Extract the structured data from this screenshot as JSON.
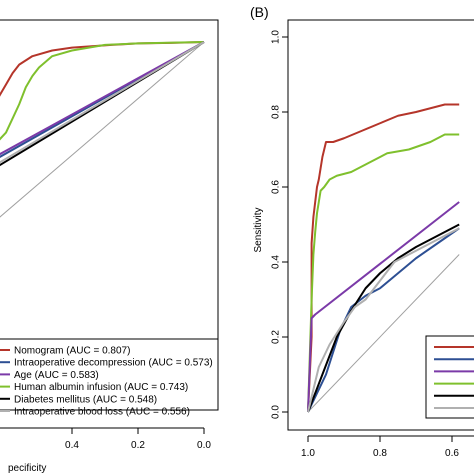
{
  "chart_data": [
    {
      "type": "line",
      "panel_label": "",
      "xlabel": "pecificity",
      "ylabel": "",
      "x_reversed": true,
      "xlim": [
        1.0,
        0.0
      ],
      "xticks": [
        "0.4",
        "0.2",
        "0.0"
      ],
      "xtick_values": [
        0.4,
        0.2,
        0.0
      ],
      "legend_position": "bottom",
      "series": [
        {
          "name": "Nomogram (AUC = 0.807)",
          "color": "#b5352a",
          "points": [
            [
              0.64,
              0.77
            ],
            [
              0.62,
              0.81
            ],
            [
              0.6,
              0.85
            ],
            [
              0.58,
              0.89
            ],
            [
              0.56,
              0.92
            ],
            [
              0.52,
              0.95
            ],
            [
              0.46,
              0.97
            ],
            [
              0.4,
              0.98
            ],
            [
              0.34,
              0.985
            ],
            [
              0.28,
              0.99
            ],
            [
              0.2,
              0.995
            ],
            [
              0.1,
              0.997
            ],
            [
              0.0,
              1.0
            ]
          ]
        },
        {
          "name": "Intraoperative decompression (AUC = 0.573)",
          "color": "#2d4f93",
          "points": [
            [
              0.64,
              0.58
            ],
            [
              0.0,
              1.0
            ]
          ]
        },
        {
          "name": "Age (AUC = 0.583)",
          "color": "#7b3aa8",
          "points": [
            [
              0.64,
              0.59
            ],
            [
              0.0,
              1.0
            ]
          ]
        },
        {
          "name": "Human albumin infusion (AUC = 0.743)",
          "color": "#7fc02d",
          "points": [
            [
              0.64,
              0.63
            ],
            [
              0.6,
              0.68
            ],
            [
              0.58,
              0.73
            ],
            [
              0.56,
              0.78
            ],
            [
              0.54,
              0.84
            ],
            [
              0.52,
              0.88
            ],
            [
              0.5,
              0.91
            ],
            [
              0.46,
              0.95
            ],
            [
              0.4,
              0.97
            ],
            [
              0.3,
              0.99
            ],
            [
              0.2,
              0.995
            ],
            [
              0.0,
              1.0
            ]
          ]
        },
        {
          "name": "Diabetes mellitus (AUC = 0.548)",
          "color": "#000000",
          "points": [
            [
              0.64,
              0.55
            ],
            [
              0.0,
              1.0
            ]
          ]
        },
        {
          "name": "Intraoperative blood loss (AUC = 0.556)",
          "color": "#b0b0b0",
          "points": [
            [
              0.64,
              0.56
            ],
            [
              0.0,
              1.0
            ]
          ]
        }
      ],
      "reference_line": {
        "color": "#a0a0a0",
        "points": [
          [
            0.64,
            0.36
          ],
          [
            0.0,
            1.0
          ]
        ]
      }
    },
    {
      "type": "line",
      "panel_label": "(B)",
      "xlabel": "",
      "ylabel": "Sensitivity",
      "x_reversed": true,
      "xlim": [
        1.05,
        0.55
      ],
      "ylim": [
        -0.05,
        1.05
      ],
      "xticks": [
        "1.0",
        "0.8",
        "0.6"
      ],
      "xtick_values": [
        1.0,
        0.8,
        0.6
      ],
      "yticks": [
        "0.0",
        "0.2",
        "0.4",
        "0.6",
        "0.8",
        "1.0"
      ],
      "ytick_values": [
        0.0,
        0.2,
        0.4,
        0.6,
        0.8,
        1.0
      ],
      "series": [
        {
          "name": "",
          "color": "#b5352a",
          "points": [
            [
              1.0,
              0.0
            ],
            [
              0.99,
              0.2
            ],
            [
              0.99,
              0.45
            ],
            [
              0.985,
              0.52
            ],
            [
              0.98,
              0.56
            ],
            [
              0.975,
              0.6
            ],
            [
              0.97,
              0.62
            ],
            [
              0.965,
              0.65
            ],
            [
              0.96,
              0.68
            ],
            [
              0.955,
              0.7
            ],
            [
              0.95,
              0.72
            ],
            [
              0.93,
              0.72
            ],
            [
              0.9,
              0.73
            ],
            [
              0.85,
              0.75
            ],
            [
              0.8,
              0.77
            ],
            [
              0.75,
              0.79
            ],
            [
              0.7,
              0.8
            ],
            [
              0.62,
              0.82
            ],
            [
              0.58,
              0.82
            ]
          ]
        },
        {
          "name": "",
          "color": "#7fc02d",
          "points": [
            [
              1.0,
              0.0
            ],
            [
              0.99,
              0.3
            ],
            [
              0.985,
              0.42
            ],
            [
              0.98,
              0.48
            ],
            [
              0.975,
              0.53
            ],
            [
              0.97,
              0.56
            ],
            [
              0.965,
              0.59
            ],
            [
              0.955,
              0.6
            ],
            [
              0.94,
              0.62
            ],
            [
              0.92,
              0.63
            ],
            [
              0.88,
              0.64
            ],
            [
              0.84,
              0.66
            ],
            [
              0.78,
              0.69
            ],
            [
              0.72,
              0.7
            ],
            [
              0.66,
              0.72
            ],
            [
              0.62,
              0.74
            ],
            [
              0.58,
              0.74
            ]
          ]
        },
        {
          "name": "",
          "color": "#7b3aa8",
          "points": [
            [
              1.0,
              0.0
            ],
            [
              0.99,
              0.25
            ],
            [
              0.98,
              0.26
            ],
            [
              0.58,
              0.56
            ]
          ]
        },
        {
          "name": "",
          "color": "#2d4f93",
          "points": [
            [
              1.0,
              0.0
            ],
            [
              0.95,
              0.1
            ],
            [
              0.91,
              0.22
            ],
            [
              0.88,
              0.28
            ],
            [
              0.84,
              0.31
            ],
            [
              0.8,
              0.33
            ],
            [
              0.75,
              0.37
            ],
            [
              0.7,
              0.41
            ],
            [
              0.64,
              0.45
            ],
            [
              0.58,
              0.49
            ]
          ]
        },
        {
          "name": "",
          "color": "#000000",
          "points": [
            [
              1.0,
              0.0
            ],
            [
              0.96,
              0.1
            ],
            [
              0.92,
              0.2
            ],
            [
              0.88,
              0.27
            ],
            [
              0.84,
              0.33
            ],
            [
              0.8,
              0.37
            ],
            [
              0.75,
              0.41
            ],
            [
              0.7,
              0.44
            ],
            [
              0.64,
              0.47
            ],
            [
              0.58,
              0.5
            ]
          ]
        },
        {
          "name": "",
          "color": "#b0b0b0",
          "points": [
            [
              1.0,
              0.0
            ],
            [
              0.97,
              0.12
            ],
            [
              0.94,
              0.18
            ],
            [
              0.9,
              0.24
            ],
            [
              0.87,
              0.28
            ],
            [
              0.84,
              0.3
            ],
            [
              0.8,
              0.35
            ],
            [
              0.76,
              0.4
            ],
            [
              0.72,
              0.42
            ],
            [
              0.66,
              0.45
            ],
            [
              0.58,
              0.49
            ]
          ]
        }
      ],
      "reference_line": {
        "color": "#a0a0a0",
        "points": [
          [
            1.0,
            0.0
          ],
          [
            0.58,
            0.42
          ]
        ]
      },
      "legend_colors": [
        "#b5352a",
        "#2d4f93",
        "#7b3aa8",
        "#7fc02d",
        "#000000",
        "#b0b0b0"
      ]
    }
  ]
}
